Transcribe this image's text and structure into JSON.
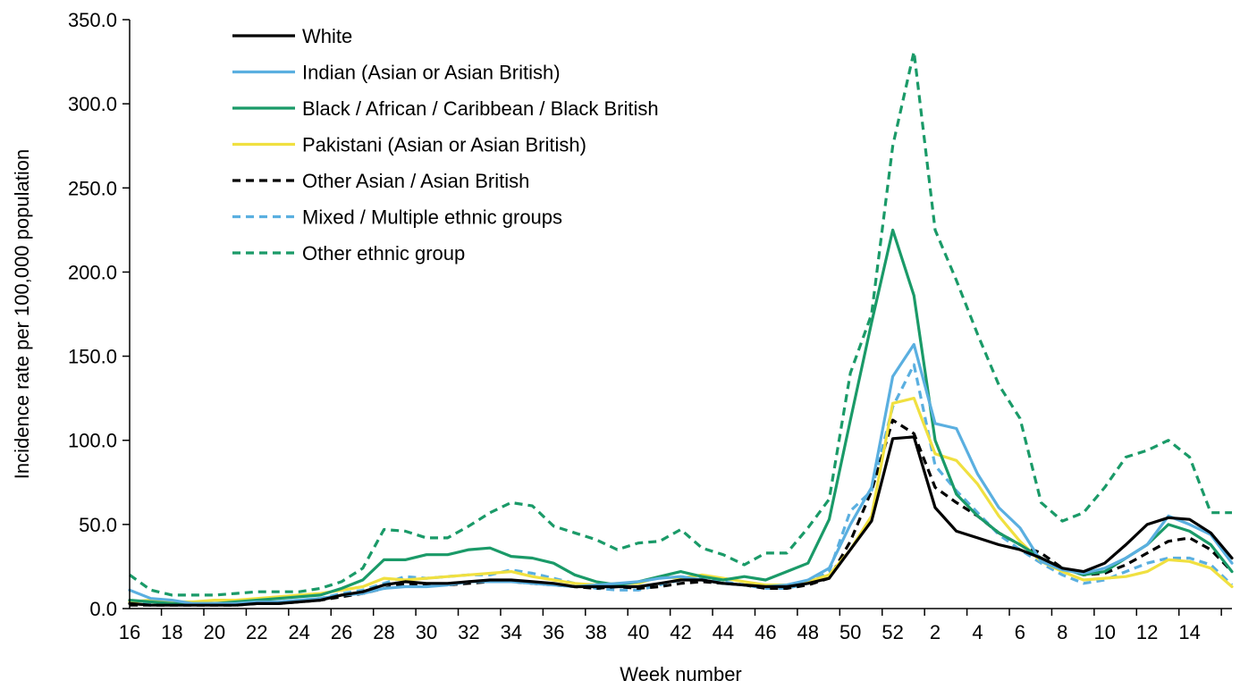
{
  "chart_data": {
    "type": "line",
    "title": "",
    "xlabel": "Week number",
    "ylabel": "Incidence rate per 100,000 population",
    "ylim": [
      0,
      350
    ],
    "yticks": [
      "0.0",
      "50.0",
      "100.0",
      "150.0",
      "200.0",
      "250.0",
      "300.0",
      "350.0"
    ],
    "x_tick_labels": [
      "16",
      "18",
      "20",
      "22",
      "24",
      "26",
      "28",
      "30",
      "32",
      "34",
      "36",
      "38",
      "40",
      "42",
      "44",
      "46",
      "48",
      "50",
      "52",
      "2",
      "4",
      "6",
      "8",
      "10",
      "12",
      "14"
    ],
    "x": [
      "16",
      "17",
      "18",
      "19",
      "20",
      "21",
      "22",
      "23",
      "24",
      "25",
      "26",
      "27",
      "28",
      "29",
      "30",
      "31",
      "32",
      "33",
      "34",
      "35",
      "36",
      "37",
      "38",
      "39",
      "40",
      "41",
      "42",
      "43",
      "44",
      "45",
      "46",
      "47",
      "48",
      "49",
      "50",
      "51",
      "52",
      "53",
      "1",
      "2",
      "3",
      "4",
      "5",
      "6",
      "7",
      "8",
      "9",
      "10",
      "11",
      "12",
      "13",
      "14",
      "15"
    ],
    "grid": false,
    "legend_position": "top-left",
    "series": [
      {
        "name": "White",
        "color": "#000000",
        "dash": false,
        "values": [
          3,
          2,
          2,
          2,
          2,
          2,
          3,
          3,
          4,
          5,
          8,
          10,
          14,
          16,
          15,
          15,
          16,
          17,
          17,
          16,
          15,
          13,
          13,
          13,
          13,
          15,
          17,
          17,
          15,
          14,
          13,
          13,
          15,
          18,
          35,
          52,
          101,
          102,
          60,
          46,
          42,
          38,
          35,
          30,
          24,
          22,
          27,
          38,
          50,
          54,
          53,
          45,
          30
        ]
      },
      {
        "name": "Indian (Asian or Asian British)",
        "color": "#5aafe0",
        "dash": false,
        "values": [
          11,
          6,
          5,
          3,
          3,
          3,
          4,
          4,
          5,
          6,
          8,
          9,
          12,
          13,
          13,
          14,
          16,
          16,
          16,
          15,
          14,
          13,
          14,
          15,
          16,
          18,
          19,
          17,
          15,
          14,
          13,
          14,
          17,
          24,
          50,
          72,
          138,
          157,
          110,
          107,
          80,
          60,
          48,
          28,
          23,
          21,
          24,
          30,
          38,
          55,
          50,
          44,
          27
        ]
      },
      {
        "name": "Black / African / Caribbean / Black British",
        "color": "#1a9a68",
        "dash": false,
        "values": [
          5,
          4,
          3,
          3,
          3,
          4,
          5,
          6,
          7,
          8,
          12,
          17,
          29,
          29,
          32,
          32,
          35,
          36,
          31,
          30,
          27,
          20,
          16,
          14,
          16,
          19,
          22,
          19,
          17,
          19,
          17,
          22,
          27,
          53,
          112,
          170,
          225,
          186,
          100,
          68,
          55,
          45,
          38,
          30,
          24,
          20,
          22,
          30,
          38,
          50,
          46,
          38,
          22
        ]
      },
      {
        "name": "Pakistani (Asian or Asian British)",
        "color": "#f0e040",
        "dash": false,
        "values": [
          4,
          5,
          4,
          4,
          5,
          5,
          6,
          7,
          8,
          9,
          11,
          13,
          18,
          17,
          18,
          19,
          20,
          21,
          22,
          19,
          17,
          15,
          14,
          15,
          15,
          19,
          18,
          20,
          18,
          16,
          14,
          14,
          16,
          20,
          35,
          55,
          122,
          125,
          92,
          88,
          74,
          55,
          40,
          28,
          22,
          17,
          18,
          19,
          22,
          29,
          28,
          24,
          13
        ]
      },
      {
        "name": "Other Asian / Asian British",
        "color": "#000000",
        "dash": true,
        "values": [
          2,
          2,
          2,
          2,
          2,
          2,
          3,
          3,
          4,
          5,
          7,
          9,
          12,
          15,
          14,
          14,
          15,
          16,
          16,
          15,
          14,
          13,
          12,
          13,
          12,
          13,
          15,
          16,
          15,
          14,
          12,
          12,
          14,
          18,
          40,
          70,
          112,
          104,
          72,
          63,
          55,
          45,
          38,
          33,
          24,
          20,
          21,
          26,
          33,
          40,
          42,
          35,
          22
        ]
      },
      {
        "name": "Mixed / Multiple ethnic groups",
        "color": "#5aafe0",
        "dash": true,
        "values": [
          4,
          3,
          3,
          3,
          3,
          3,
          4,
          4,
          5,
          6,
          9,
          11,
          15,
          19,
          18,
          19,
          20,
          20,
          23,
          21,
          18,
          15,
          12,
          11,
          11,
          14,
          17,
          18,
          16,
          14,
          12,
          12,
          15,
          22,
          58,
          70,
          120,
          145,
          85,
          70,
          57,
          44,
          35,
          27,
          20,
          15,
          17,
          22,
          27,
          30,
          30,
          26,
          14
        ]
      },
      {
        "name": "Other ethnic group",
        "color": "#1a9a68",
        "dash": true,
        "values": [
          20,
          11,
          8,
          8,
          8,
          9,
          10,
          10,
          10,
          12,
          16,
          24,
          47,
          46,
          42,
          42,
          49,
          57,
          63,
          61,
          49,
          45,
          41,
          35,
          39,
          40,
          47,
          36,
          32,
          26,
          33,
          33,
          48,
          65,
          140,
          175,
          275,
          331,
          225,
          195,
          163,
          133,
          113,
          63,
          52,
          57,
          72,
          90,
          94,
          100,
          90,
          57,
          57
        ]
      }
    ]
  }
}
